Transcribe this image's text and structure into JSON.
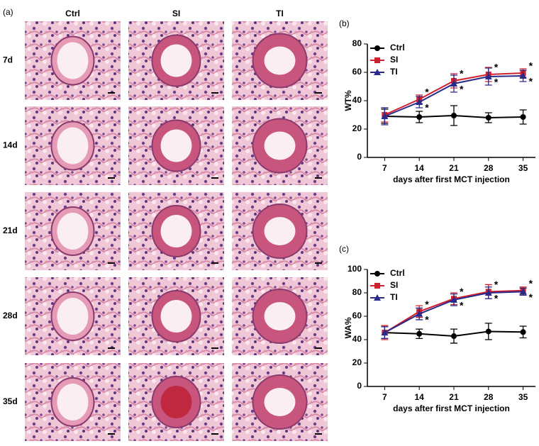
{
  "figure": {
    "panel_label": "(a)",
    "columns": [
      "Ctrl",
      "SI",
      "TI"
    ],
    "rows": [
      "7d",
      "14d",
      "21d",
      "28d",
      "35d"
    ]
  },
  "chart_data": [
    {
      "type": "line",
      "panel_label": "(b)",
      "ylabel": "WT%",
      "xlabel": "days after first MCT injection",
      "x": [
        7,
        14,
        21,
        28,
        35
      ],
      "xlim": [
        3.5,
        37.5
      ],
      "xticks": [
        7,
        14,
        21,
        28,
        35
      ],
      "ylim": [
        0,
        80
      ],
      "yticks": [
        0,
        20,
        40,
        60,
        80
      ],
      "legend": "upper left",
      "series": [
        {
          "name": "Ctrl",
          "color": "#000000",
          "marker": "circle",
          "values": [
            29,
            28.5,
            29.5,
            28,
            28.5
          ],
          "errors": [
            5,
            4,
            7,
            3.5,
            5
          ],
          "significance": [
            null,
            null,
            null,
            null,
            null
          ]
        },
        {
          "name": "SI",
          "color": "#d0202e",
          "marker": "square",
          "values": [
            30,
            41,
            54,
            58.5,
            59.5
          ],
          "errors": [
            5,
            3,
            5,
            5,
            3
          ],
          "significance": [
            null,
            "*",
            "*",
            "*",
            "*"
          ]
        },
        {
          "name": "TI",
          "color": "#2a2a8a",
          "marker": "triangle",
          "values": [
            29,
            39,
            52,
            57,
            57.5
          ],
          "errors": [
            6,
            4,
            6,
            6,
            4
          ],
          "significance": [
            null,
            "*",
            "*",
            "*",
            "*"
          ]
        }
      ]
    },
    {
      "type": "line",
      "panel_label": "(c)",
      "ylabel": "WA%",
      "xlabel": "days after first MCT injection",
      "x": [
        7,
        14,
        21,
        28,
        35
      ],
      "xlim": [
        3.5,
        37.5
      ],
      "xticks": [
        7,
        14,
        21,
        28,
        35
      ],
      "ylim": [
        0,
        100
      ],
      "yticks": [
        0,
        20,
        40,
        60,
        80,
        100
      ],
      "legend": "upper left",
      "series": [
        {
          "name": "Ctrl",
          "color": "#000000",
          "marker": "circle",
          "values": [
            46,
            45,
            43,
            47,
            46.5
          ],
          "errors": [
            5,
            4,
            6,
            7,
            5
          ],
          "significance": [
            null,
            null,
            null,
            null,
            null
          ]
        },
        {
          "name": "SI",
          "color": "#d0202e",
          "marker": "square",
          "values": [
            46,
            64,
            75,
            81,
            82
          ],
          "errors": [
            6,
            5,
            5,
            6,
            3
          ],
          "significance": [
            null,
            "*",
            "*",
            "*",
            "*"
          ]
        },
        {
          "name": "TI",
          "color": "#2a2a8a",
          "marker": "triangle",
          "values": [
            46,
            62,
            74,
            80,
            81
          ],
          "errors": [
            5,
            5,
            5,
            5,
            3
          ],
          "significance": [
            null,
            "*",
            "*",
            "*",
            "*"
          ]
        }
      ]
    }
  ]
}
